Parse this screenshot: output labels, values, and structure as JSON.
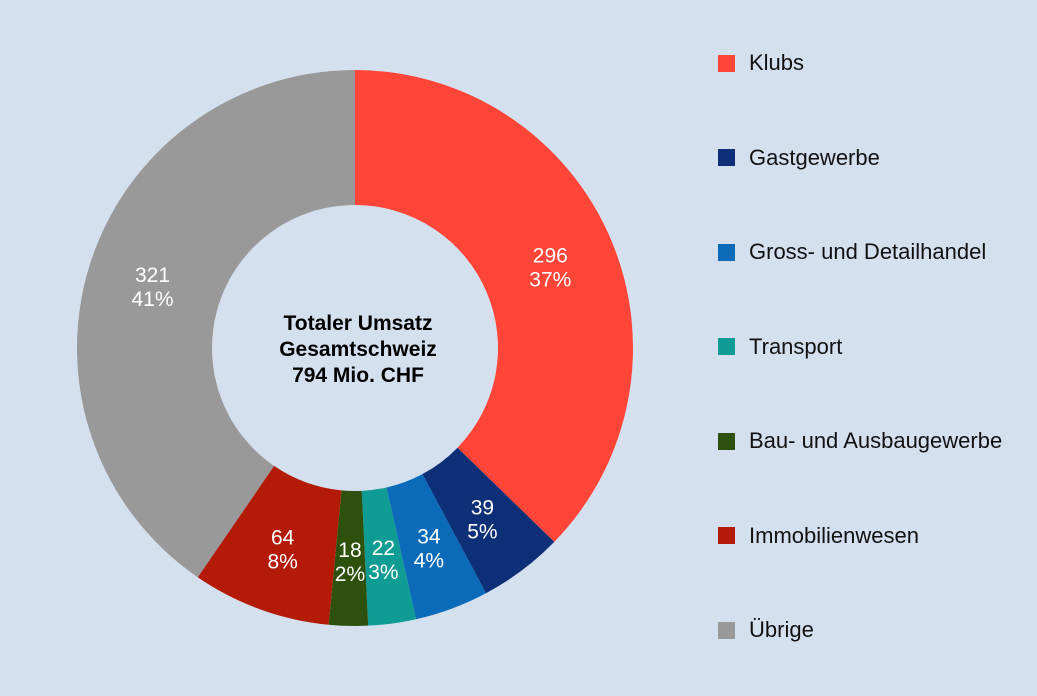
{
  "chart_data": {
    "type": "pie",
    "style": "donut",
    "center_text": [
      "Totaler Umsatz",
      "Gesamtschweiz",
      "794 Mio. CHF"
    ],
    "slices": [
      {
        "name": "Klubs",
        "value": 296,
        "value_label": "296",
        "percent_label": "37%",
        "color": "#ff4438"
      },
      {
        "name": "Gastgewerbe",
        "value": 39,
        "value_label": "39",
        "percent_label": "5%",
        "color": "#0c2f77"
      },
      {
        "name": "Gross- und Detailhandel",
        "value": 34,
        "value_label": "34",
        "percent_label": "4%",
        "color": "#0b6bb8"
      },
      {
        "name": "Transport",
        "value": 22,
        "value_label": "22",
        "percent_label": "3%",
        "color": "#0f9c94"
      },
      {
        "name": "Bau- und Ausbaugewerbe",
        "value": 18,
        "value_label": "18",
        "percent_label": "2%",
        "color": "#2e520e"
      },
      {
        "name": "Immobilienwesen",
        "value": 64,
        "value_label": "64",
        "percent_label": "8%",
        "color": "#b31a07"
      },
      {
        "name": "Übrige",
        "value": 321,
        "value_label": "321",
        "percent_label": "41%",
        "color": "#999999"
      }
    ],
    "legend_position": "right"
  }
}
